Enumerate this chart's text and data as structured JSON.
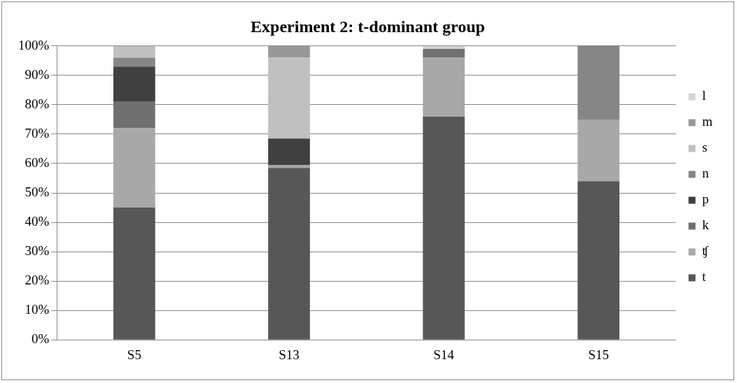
{
  "chart_data": {
    "type": "bar",
    "title": "Experiment 2: t-dominant group",
    "stacked": true,
    "categories": [
      "S5",
      "S13",
      "S14",
      "S15"
    ],
    "series": [
      {
        "name": "t",
        "color": "#575757",
        "values": [
          45,
          58.5,
          76,
          54
        ]
      },
      {
        "name": "ʧ",
        "color": "#a8a8a8",
        "values": [
          27,
          1,
          20,
          21
        ]
      },
      {
        "name": "k",
        "color": "#707070",
        "values": [
          9,
          null,
          3,
          null
        ]
      },
      {
        "name": "p",
        "color": "#404040",
        "values": [
          12,
          9,
          null,
          null
        ]
      },
      {
        "name": "n",
        "color": "#868686",
        "values": [
          3,
          null,
          null,
          25
        ]
      },
      {
        "name": "s",
        "color": "#c0c0c0",
        "values": [
          4,
          27.5,
          null,
          null
        ]
      },
      {
        "name": "m",
        "color": "#979797",
        "values": [
          null,
          4,
          null,
          null
        ]
      },
      {
        "name": "l",
        "color": "#d4d4d4",
        "values": [
          null,
          null,
          1,
          null
        ]
      }
    ],
    "ylim": [
      0,
      100
    ],
    "yticks": [
      {
        "value": 0,
        "label": "0%"
      },
      {
        "value": 10,
        "label": "10%"
      },
      {
        "value": 20,
        "label": "20%"
      },
      {
        "value": 30,
        "label": "30%"
      },
      {
        "value": 40,
        "label": "40%"
      },
      {
        "value": 50,
        "label": "50%"
      },
      {
        "value": 60,
        "label": "60%"
      },
      {
        "value": 70,
        "label": "70%"
      },
      {
        "value": 80,
        "label": "80%"
      },
      {
        "value": 90,
        "label": "90%"
      },
      {
        "value": 100,
        "label": "100%"
      }
    ],
    "grid": "y",
    "legend": "right"
  }
}
